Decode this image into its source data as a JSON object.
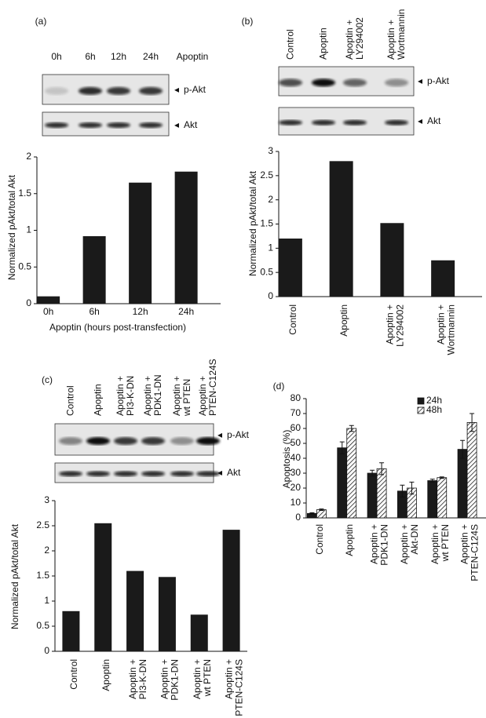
{
  "chart_data": [
    {
      "type": "bar",
      "panel_label": "(a)",
      "lane_labels": [
        "0h",
        "6h",
        "12h",
        "24h"
      ],
      "lane_title": "Apoptin",
      "blot_labels": [
        "p-Akt",
        "Akt"
      ],
      "categories": [
        "0h",
        "6h",
        "12h",
        "24h"
      ],
      "values": [
        0.1,
        0.92,
        1.65,
        1.8
      ],
      "color": "#1a1a1a",
      "ylim": [
        0,
        2
      ],
      "yticks": [
        0,
        0.5,
        1,
        1.5,
        2
      ],
      "grid": false,
      "ylabel": "Normalized pAkt/total Akt",
      "xlabel": "Apoptin (hours post-transfection)"
    },
    {
      "type": "bar",
      "panel_label": "(b)",
      "lane_labels": [
        "Control",
        "Apoptin",
        "Apoptin +\nLY294002",
        "Apoptin +\nWortmannin"
      ],
      "blot_labels": [
        "p-Akt",
        "Akt"
      ],
      "categories": [
        "Control",
        "Apoptin",
        "Apoptin +\nLY294002",
        "Apoptin +\nWortmannin"
      ],
      "values": [
        1.2,
        2.8,
        1.52,
        0.75
      ],
      "color": "#1a1a1a",
      "ylim": [
        0,
        3
      ],
      "yticks": [
        0,
        0.5,
        1,
        1.5,
        2,
        2.5,
        3
      ],
      "grid": false,
      "ylabel": "Normalized pAkt/total Akt"
    },
    {
      "type": "bar",
      "panel_label": "(c)",
      "lane_labels": [
        "Control",
        "Apoptin",
        "Apoptin +\nPI3-K-DN",
        "Apoptin +\nPDK1-DN",
        "Apoptin +\nwt PTEN",
        "Apoptin +\nPTEN-C124S"
      ],
      "blot_labels": [
        "p-Akt",
        "Akt"
      ],
      "categories": [
        "Control",
        "Apoptin",
        "Apoptin +\nPI3-K-DN",
        "Apoptin +\nPDK1-DN",
        "Apoptin +\nwt PTEN",
        "Apoptin +\nPTEN-C124S"
      ],
      "values": [
        0.8,
        2.55,
        1.6,
        1.48,
        0.73,
        2.42
      ],
      "color": "#1a1a1a",
      "ylim": [
        0,
        3
      ],
      "yticks": [
        0,
        0.5,
        1,
        1.5,
        2,
        2.5,
        3
      ],
      "grid": false,
      "ylabel": "Normalized pAkt/total Akt"
    },
    {
      "type": "grouped_bar",
      "panel_label": "(d)",
      "categories": [
        "Control",
        "Apoptin",
        "Apoptin +\nPDK1-DN",
        "Apoptin +\nAkt-DN",
        "Apoptin +\nwt PTEN",
        "Apoptin +\nPTEN-C124S"
      ],
      "series": [
        {
          "name": "24h",
          "color": "#1a1a1a",
          "hatch": false,
          "values": [
            3,
            47,
            30,
            18,
            25,
            46
          ],
          "errors": [
            0.5,
            4,
            2,
            4,
            1,
            6
          ]
        },
        {
          "name": "48h",
          "color": "#ffffff",
          "hatch": true,
          "values": [
            5.5,
            60,
            33,
            20,
            27,
            64
          ],
          "errors": [
            0.5,
            2,
            4,
            4,
            0.5,
            6
          ]
        }
      ],
      "ylim": [
        0,
        80
      ],
      "yticks": [
        0,
        10,
        20,
        30,
        40,
        50,
        60,
        70,
        80
      ],
      "grid": false,
      "ylabel": "Apoptosis (%)",
      "legend": "upper right"
    }
  ]
}
